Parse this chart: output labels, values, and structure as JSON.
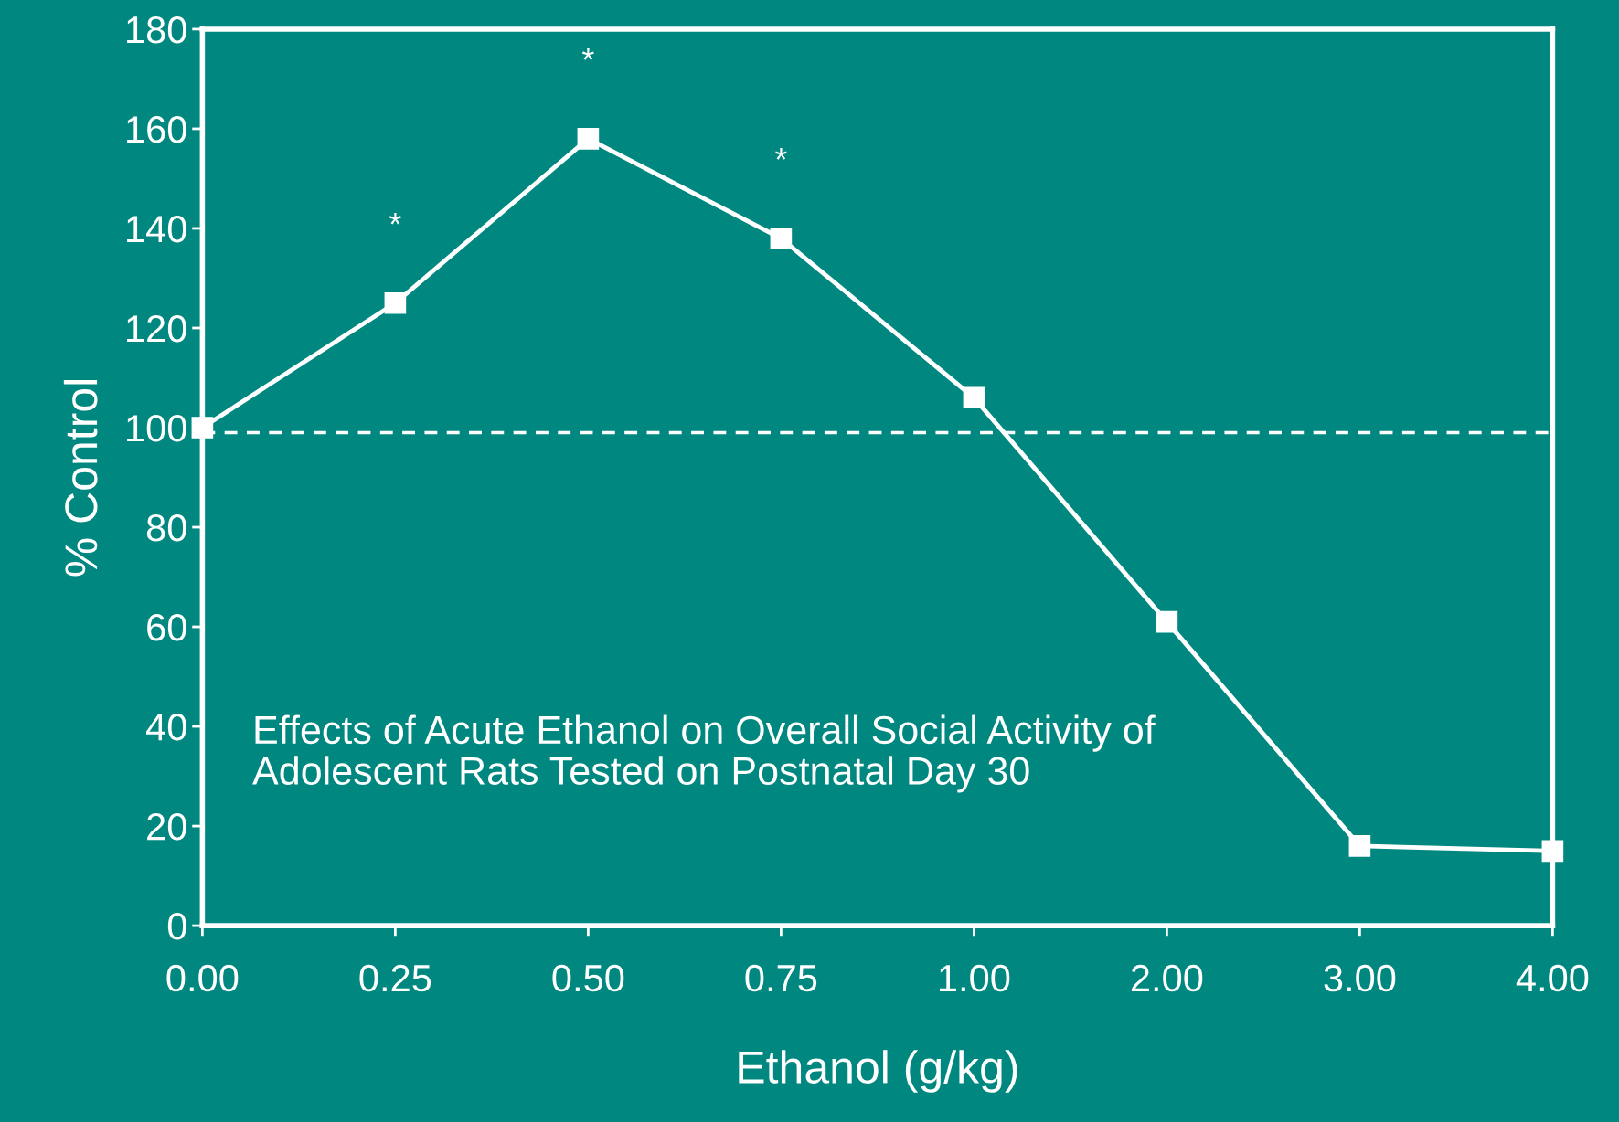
{
  "chart_data": {
    "type": "line",
    "title": "Effects of Acute Ethanol on Overall Social Activity of Adolescent Rats Tested on Postnatal Day 30",
    "xlabel": "Ethanol (g/kg)",
    "ylabel": "% Control",
    "categories": [
      "0.00",
      "0.25",
      "0.50",
      "0.75",
      "1.00",
      "2.00",
      "3.00",
      "4.00"
    ],
    "series": [
      {
        "color": "#ffffff",
        "values": [
          100,
          125,
          158,
          138,
          106,
          61,
          16,
          15
        ]
      }
    ],
    "marker": "square",
    "line_style": "solid",
    "ylim": [
      0,
      180
    ],
    "yticks": [
      0,
      20,
      40,
      60,
      80,
      100,
      120,
      140,
      160,
      180
    ],
    "ref_lines": [
      {
        "axis": "y",
        "value": 99,
        "label": null,
        "color": "#ffffff",
        "line_style": "dashed"
      }
    ],
    "annotations": [
      {
        "text": "*",
        "x": "0.25",
        "y": 125
      },
      {
        "text": "*",
        "x": "0.50",
        "y": 158
      },
      {
        "text": "*",
        "x": "0.75",
        "y": 138
      }
    ],
    "grid": false,
    "legend": false
  }
}
